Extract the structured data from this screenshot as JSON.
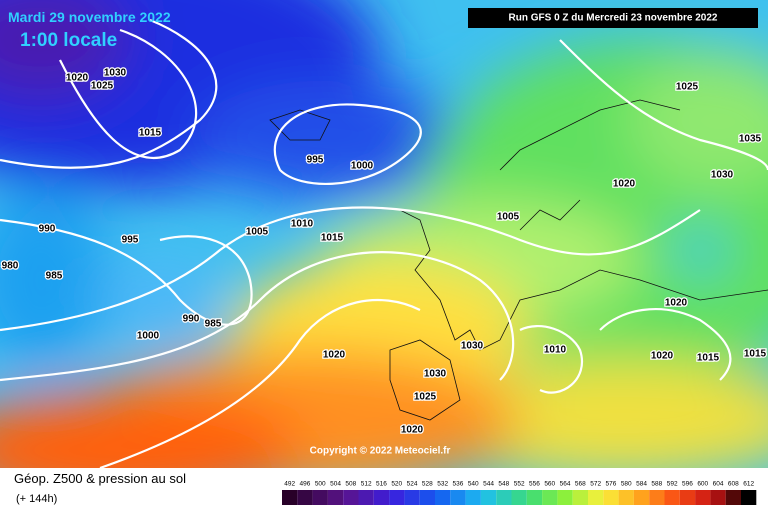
{
  "header": {
    "date": "Mardi 29 novembre 2022",
    "time": "1:00 locale",
    "run": "Run GFS 0 Z du Mercredi 23 novembre 2022"
  },
  "copyright": "Copyright © 2022 Meteociel.fr",
  "legend": {
    "title": "Géop. Z500 & pression au sol",
    "lead": "(+ 144h)",
    "scale": [
      492,
      496,
      500,
      504,
      508,
      512,
      516,
      520,
      524,
      528,
      532,
      536,
      540,
      544,
      548,
      552,
      556,
      560,
      564,
      568,
      572,
      576,
      580,
      584,
      588,
      592,
      596,
      600,
      604,
      608,
      612
    ]
  },
  "isobar_labels": [
    1020,
    1030,
    1025,
    1015,
    995,
    1000,
    1005,
    1010,
    1015,
    990,
    995,
    980,
    985,
    990,
    985,
    1000,
    1020,
    1030,
    1030,
    1025,
    1020,
    1010,
    1005,
    1020,
    1030,
    1025,
    1035,
    1020,
    1020,
    1015,
    1015
  ]
}
